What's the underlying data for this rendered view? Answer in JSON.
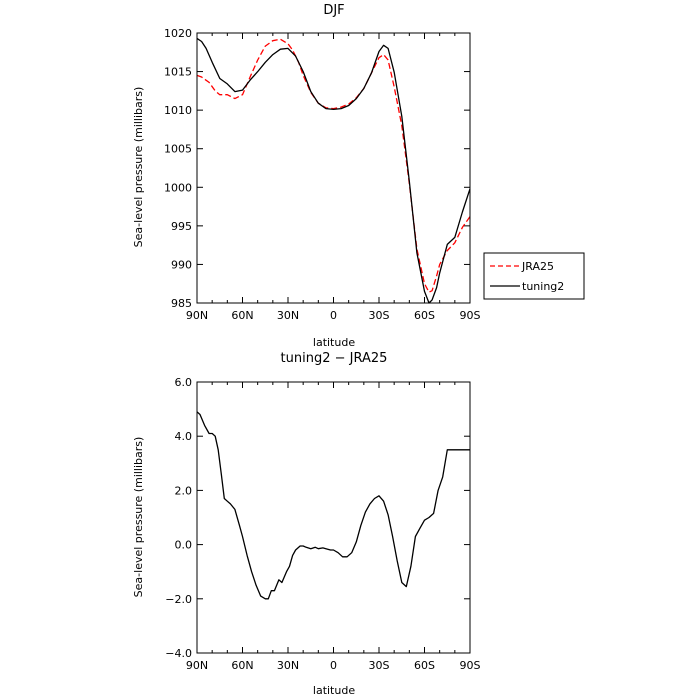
{
  "chart_data": [
    {
      "type": "line",
      "title": "DJF",
      "xlabel": "latitude",
      "ylabel": "Sea-level pressure (millibars)",
      "xlim": [
        90,
        -90
      ],
      "ylim": [
        985,
        1020
      ],
      "x_ticks": [
        {
          "value": 90,
          "label": "90N"
        },
        {
          "value": 60,
          "label": "60N"
        },
        {
          "value": 30,
          "label": "30N"
        },
        {
          "value": 0,
          "label": "0"
        },
        {
          "value": -30,
          "label": "30S"
        },
        {
          "value": -60,
          "label": "60S"
        },
        {
          "value": -90,
          "label": "90S"
        }
      ],
      "y_ticks": [
        {
          "value": 985,
          "label": "985"
        },
        {
          "value": 990,
          "label": "990"
        },
        {
          "value": 995,
          "label": "995"
        },
        {
          "value": 1000,
          "label": "1000"
        },
        {
          "value": 1005,
          "label": "1005"
        },
        {
          "value": 1010,
          "label": "1010"
        },
        {
          "value": 1015,
          "label": "1015"
        },
        {
          "value": 1020,
          "label": "1020"
        }
      ],
      "legend_position": "right",
      "series": [
        {
          "name": "JRA25",
          "color": "#ff0000",
          "dash": true,
          "x": [
            90,
            87,
            82,
            78,
            75,
            70,
            65,
            60,
            55,
            50,
            45,
            40,
            35,
            30,
            27,
            23,
            20,
            15,
            10,
            5,
            0,
            -5,
            -10,
            -15,
            -20,
            -25,
            -30,
            -33,
            -36,
            -40,
            -45,
            -50,
            -55,
            -60,
            -63,
            -65,
            -68,
            -70,
            -75,
            -80,
            -85,
            -90
          ],
          "y": [
            1014.5,
            1014.3,
            1013.6,
            1012.5,
            1012.0,
            1012.0,
            1011.5,
            1012.0,
            1014.3,
            1016.5,
            1018.3,
            1019.0,
            1019.2,
            1018.6,
            1017.8,
            1016.2,
            1014.5,
            1012.3,
            1010.9,
            1010.3,
            1010.2,
            1010.4,
            1010.8,
            1011.6,
            1012.8,
            1014.8,
            1016.8,
            1017.2,
            1016.5,
            1013.0,
            1008.0,
            1000.5,
            992.0,
            987.5,
            986.4,
            986.6,
            988.5,
            990.0,
            991.8,
            992.8,
            994.8,
            996.2
          ]
        },
        {
          "name": "tuning2",
          "color": "#000000",
          "dash": false,
          "x": [
            90,
            87,
            84,
            80,
            75,
            70,
            65,
            60,
            55,
            50,
            45,
            40,
            35,
            30,
            25,
            20,
            15,
            10,
            5,
            0,
            -5,
            -10,
            -15,
            -20,
            -25,
            -30,
            -33,
            -36,
            -40,
            -45,
            -50,
            -55,
            -60,
            -63,
            -65,
            -68,
            -70,
            -75,
            -80,
            -85,
            -90
          ],
          "y": [
            1019.3,
            1018.9,
            1018.0,
            1016.2,
            1014.1,
            1013.4,
            1012.4,
            1012.6,
            1013.9,
            1015.0,
            1016.2,
            1017.2,
            1017.9,
            1018.0,
            1017.0,
            1015.0,
            1012.4,
            1010.9,
            1010.2,
            1010.1,
            1010.2,
            1010.6,
            1011.5,
            1012.8,
            1014.8,
            1017.6,
            1018.4,
            1018.0,
            1014.9,
            1009.2,
            1000.8,
            991.5,
            986.5,
            985.0,
            985.4,
            987.0,
            988.9,
            992.6,
            993.5,
            996.8,
            999.8
          ]
        }
      ]
    },
    {
      "type": "line",
      "title": "tuning2 − JRA25",
      "xlabel": "latitude",
      "ylabel": "Sea-level pressure (millibars)",
      "xlim": [
        90,
        -90
      ],
      "ylim": [
        -4,
        6
      ],
      "x_ticks": [
        {
          "value": 90,
          "label": "90N"
        },
        {
          "value": 60,
          "label": "60N"
        },
        {
          "value": 30,
          "label": "30N"
        },
        {
          "value": 0,
          "label": "0"
        },
        {
          "value": -30,
          "label": "30S"
        },
        {
          "value": -60,
          "label": "60S"
        },
        {
          "value": -90,
          "label": "90S"
        }
      ],
      "y_ticks": [
        {
          "value": -4,
          "label": "−4.0"
        },
        {
          "value": -2,
          "label": "−2.0"
        },
        {
          "value": 0,
          "label": "0.0"
        },
        {
          "value": 2,
          "label": "2.0"
        },
        {
          "value": 4,
          "label": "4.0"
        },
        {
          "value": 6,
          "label": "6.0"
        }
      ],
      "series": [
        {
          "name": "",
          "color": "#000000",
          "dash": false,
          "x": [
            90,
            88,
            85,
            82,
            80,
            78,
            76,
            74,
            72,
            70,
            68,
            65,
            62,
            60,
            57,
            54,
            51,
            48,
            45,
            43,
            41,
            39,
            36,
            34,
            31,
            29,
            27,
            25,
            22,
            20,
            18,
            15,
            12,
            10,
            7,
            5,
            2,
            0,
            -3,
            -6,
            -9,
            -12,
            -15,
            -18,
            -21,
            -24,
            -27,
            -30,
            -33,
            -36,
            -39,
            -42,
            -45,
            -48,
            -51,
            -54,
            -57,
            -60,
            -63,
            -66,
            -69,
            -72,
            -75,
            -78,
            -81,
            -84,
            -87,
            -90
          ],
          "y": [
            4.9,
            4.8,
            4.4,
            4.1,
            4.1,
            4.0,
            3.5,
            2.6,
            1.7,
            1.6,
            1.5,
            1.3,
            0.7,
            0.3,
            -0.4,
            -1.0,
            -1.5,
            -1.9,
            -2.0,
            -2.0,
            -1.7,
            -1.7,
            -1.3,
            -1.4,
            -1.0,
            -0.8,
            -0.4,
            -0.2,
            -0.05,
            -0.05,
            -0.1,
            -0.15,
            -0.1,
            -0.15,
            -0.12,
            -0.15,
            -0.2,
            -0.2,
            -0.3,
            -0.45,
            -0.45,
            -0.3,
            0.1,
            0.7,
            1.2,
            1.5,
            1.7,
            1.8,
            1.6,
            1.1,
            0.3,
            -0.6,
            -1.4,
            -1.55,
            -0.8,
            0.3,
            0.6,
            0.9,
            1.0,
            1.15,
            2.0,
            2.5,
            3.5,
            3.5,
            3.5,
            3.5,
            3.5,
            3.5
          ]
        }
      ]
    }
  ]
}
